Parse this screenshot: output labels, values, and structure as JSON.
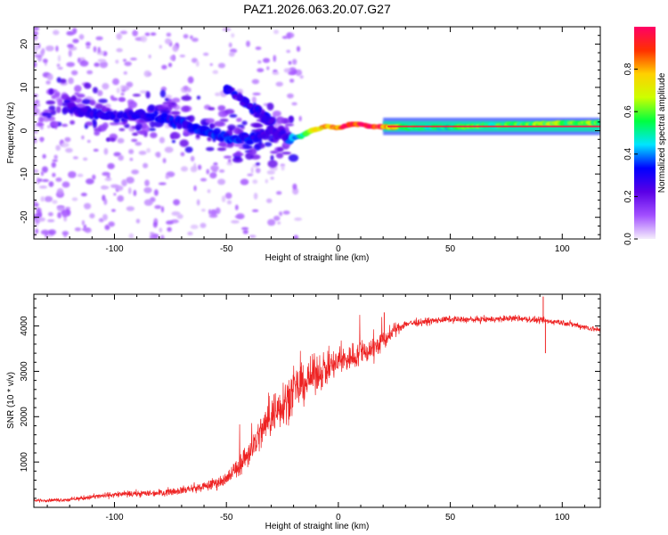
{
  "title": "PAZ1.2026.063.20.07.G27",
  "chart_data": [
    {
      "type": "heatmap",
      "xlabel": "Height of straight line (km)",
      "ylabel": "Frequency (Hz)",
      "xlim": [
        -136,
        117
      ],
      "ylim": [
        -25,
        24
      ],
      "xticks": [
        "-100",
        "-50",
        "0",
        "50",
        "100"
      ],
      "yticks": [
        "-20",
        "-10",
        "0",
        "10",
        "20"
      ],
      "colorbar": {
        "label": "Normalized spectral amplitude",
        "range": [
          0,
          1
        ],
        "ticks": [
          "0.0",
          "0.2",
          "0.4",
          "0.6",
          "0.8"
        ],
        "colors": [
          "#f5eefc",
          "#a24fff",
          "#5a00e6",
          "#0000ff",
          "#00e5ff",
          "#00ff40",
          "#ccff00",
          "#ffd000",
          "#ff3000",
          "#ff0066"
        ]
      },
      "main_trace": {
        "x": [
          -118,
          -108,
          -98,
          -88,
          -78,
          -68,
          -58,
          -48,
          -38,
          -30,
          -26,
          -22,
          -18,
          -14,
          -10,
          -5,
          0,
          5,
          10,
          15,
          20,
          30,
          40,
          50,
          60,
          70,
          80,
          90,
          100,
          117
        ],
        "y": [
          5,
          4,
          3,
          3.5,
          3,
          1.5,
          -0.5,
          -2,
          -1.5,
          0,
          -0.5,
          -2,
          -1.5,
          -0.5,
          0.5,
          1,
          0.5,
          1.5,
          1.5,
          1,
          1,
          0.8,
          0.8,
          0.8,
          1,
          1.2,
          1.5,
          1.5,
          1.8,
          1.8
        ],
        "amplitude": [
          0.25,
          0.3,
          0.28,
          0.3,
          0.3,
          0.32,
          0.32,
          0.35,
          0.3,
          0.25,
          0.22,
          0.35,
          0.45,
          0.55,
          0.7,
          0.85,
          0.9,
          0.95,
          0.98,
          0.95,
          0.92,
          0.55,
          0.5,
          0.5,
          0.62,
          0.55,
          0.58,
          0.6,
          0.62,
          0.6
        ]
      },
      "upper_branch": {
        "x": [
          -50,
          -45,
          -40,
          -35,
          -30
        ],
        "y": [
          10,
          8,
          6,
          4,
          2
        ]
      }
    },
    {
      "type": "line",
      "xlabel": "Height of straight line (km)",
      "ylabel": "SNR (10 * v/v)",
      "xlim": [
        -136,
        117
      ],
      "ylim": [
        0,
        4700
      ],
      "xticks": [
        "-100",
        "-50",
        "0",
        "50",
        "100"
      ],
      "yticks": [
        "1000",
        "2000",
        "3000",
        "4000"
      ],
      "color": "#ee2222",
      "series": [
        {
          "name": "SNR",
          "x": [
            -136,
            -120,
            -110,
            -100,
            -90,
            -80,
            -70,
            -60,
            -50,
            -45,
            -40,
            -35,
            -30,
            -25,
            -22,
            -20,
            -15,
            -10,
            -5,
            0,
            5,
            10,
            15,
            20,
            25,
            30,
            40,
            50,
            60,
            70,
            80,
            90,
            100,
            110,
            117
          ],
          "y": [
            150,
            170,
            230,
            280,
            300,
            320,
            380,
            450,
            620,
            880,
            1200,
            1620,
            2020,
            2320,
            2450,
            2550,
            2750,
            2950,
            3050,
            3200,
            3300,
            3400,
            3500,
            3650,
            3900,
            4050,
            4100,
            4150,
            4140,
            4150,
            4170,
            4120,
            4080,
            3980,
            3900
          ],
          "noise": [
            40,
            60,
            80,
            90,
            100,
            110,
            120,
            150,
            220,
            300,
            420,
            540,
            650,
            700,
            700,
            650,
            600,
            550,
            500,
            450,
            420,
            400,
            380,
            300,
            200,
            120,
            110,
            100,
            100,
            100,
            100,
            100,
            100,
            90,
            90
          ]
        }
      ],
      "events": [
        {
          "x": 20.5,
          "y": 4300
        },
        {
          "x": 91.5,
          "y": 4650
        },
        {
          "x": 92.5,
          "y": 3400
        }
      ]
    }
  ]
}
